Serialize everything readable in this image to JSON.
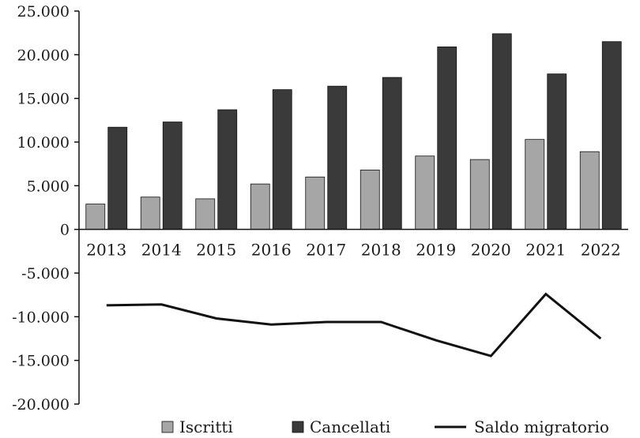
{
  "chart_data": {
    "type": "bar",
    "categories": [
      "2013",
      "2014",
      "2015",
      "2016",
      "2017",
      "2018",
      "2019",
      "2020",
      "2021",
      "2022"
    ],
    "series": [
      {
        "name": "Iscritti",
        "kind": "bar",
        "color": "#a6a6a6",
        "values": [
          2900,
          3700,
          3500,
          5200,
          6000,
          6800,
          8400,
          8000,
          10300,
          8900
        ]
      },
      {
        "name": "Cancellati",
        "kind": "bar",
        "color": "#3a3a3a",
        "values": [
          11700,
          12300,
          13700,
          16000,
          16400,
          17400,
          20900,
          22400,
          17800,
          21500
        ]
      },
      {
        "name": "Saldo migratorio",
        "kind": "line",
        "color": "#111111",
        "values": [
          -8700,
          -8600,
          -10200,
          -10900,
          -10600,
          -10600,
          -12700,
          -14500,
          -7400,
          -12500
        ]
      }
    ],
    "y_ticks": [
      "25.000",
      "20.000",
      "15.000",
      "10.000",
      "5.000",
      "0",
      "-5.000",
      "-10.000",
      "-15.000",
      "-20.000"
    ],
    "y_tick_values": [
      25000,
      20000,
      15000,
      10000,
      5000,
      0,
      -5000,
      -10000,
      -15000,
      -20000
    ],
    "ylim": [
      -20000,
      25000
    ],
    "grid": false,
    "legend_position": "bottom",
    "title": "",
    "xlabel": "",
    "ylabel": ""
  }
}
